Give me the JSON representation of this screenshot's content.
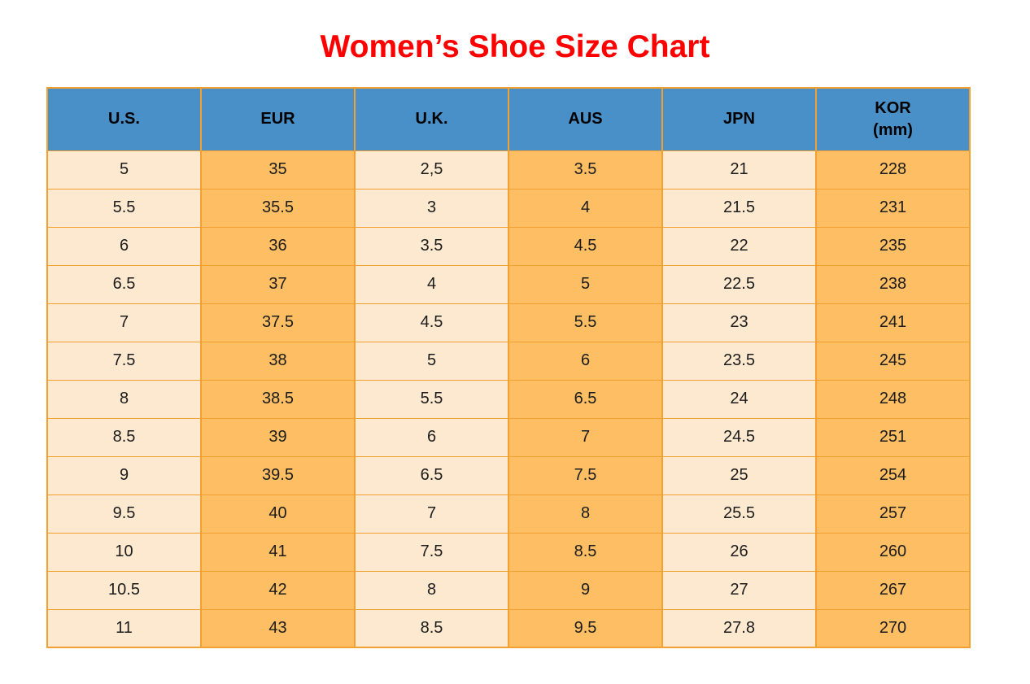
{
  "page": {
    "title": "Women’s Shoe Size Chart"
  },
  "colors": {
    "title": "#FF0000",
    "header_bg": "#4A90C8",
    "header_text": "#000000",
    "column_cream": "#FCE9CF",
    "column_orange": "#FDBE64",
    "border": "#F2A130",
    "cell_text": "#1C1C1C"
  },
  "table": {
    "columns": [
      {
        "label": "U.S.",
        "sub": "",
        "tone": "cream"
      },
      {
        "label": "EUR",
        "sub": "",
        "tone": "orange"
      },
      {
        "label": "U.K.",
        "sub": "",
        "tone": "cream"
      },
      {
        "label": "AUS",
        "sub": "",
        "tone": "orange"
      },
      {
        "label": "JPN",
        "sub": "",
        "tone": "cream"
      },
      {
        "label": "KOR",
        "sub": "(mm)",
        "tone": "orange"
      }
    ],
    "rows": [
      [
        "5",
        "35",
        "2,5",
        "3.5",
        "21",
        "228"
      ],
      [
        "5.5",
        "35.5",
        "3",
        "4",
        "21.5",
        "231"
      ],
      [
        "6",
        "36",
        "3.5",
        "4.5",
        "22",
        "235"
      ],
      [
        "6.5",
        "37",
        "4",
        "5",
        "22.5",
        "238"
      ],
      [
        "7",
        "37.5",
        "4.5",
        "5.5",
        "23",
        "241"
      ],
      [
        "7.5",
        "38",
        "5",
        "6",
        "23.5",
        "245"
      ],
      [
        "8",
        "38.5",
        "5.5",
        "6.5",
        "24",
        "248"
      ],
      [
        "8.5",
        "39",
        "6",
        "7",
        "24.5",
        "251"
      ],
      [
        "9",
        "39.5",
        "6.5",
        "7.5",
        "25",
        "254"
      ],
      [
        "9.5",
        "40",
        "7",
        "8",
        "25.5",
        "257"
      ],
      [
        "10",
        "41",
        "7.5",
        "8.5",
        "26",
        "260"
      ],
      [
        "10.5",
        "42",
        "8",
        "9",
        "27",
        "267"
      ],
      [
        "11",
        "43",
        "8.5",
        "9.5",
        "27.8",
        "270"
      ]
    ]
  },
  "chart_data": {
    "type": "table",
    "title": "Women’s Shoe Size Chart",
    "columns": [
      "U.S.",
      "EUR",
      "U.K.",
      "AUS",
      "JPN",
      "KOR (mm)"
    ],
    "rows": [
      [
        "5",
        "35",
        "2,5",
        "3.5",
        "21",
        "228"
      ],
      [
        "5.5",
        "35.5",
        "3",
        "4",
        "21.5",
        "231"
      ],
      [
        "6",
        "36",
        "3.5",
        "4.5",
        "22",
        "235"
      ],
      [
        "6.5",
        "37",
        "4",
        "5",
        "22.5",
        "238"
      ],
      [
        "7",
        "37.5",
        "4.5",
        "5.5",
        "23",
        "241"
      ],
      [
        "7.5",
        "38",
        "5",
        "6",
        "23.5",
        "245"
      ],
      [
        "8",
        "38.5",
        "5.5",
        "6.5",
        "24",
        "248"
      ],
      [
        "8.5",
        "39",
        "6",
        "7",
        "24.5",
        "251"
      ],
      [
        "9",
        "39.5",
        "6.5",
        "7.5",
        "25",
        "254"
      ],
      [
        "9.5",
        "40",
        "7",
        "8",
        "25.5",
        "257"
      ],
      [
        "10",
        "41",
        "7.5",
        "8.5",
        "26",
        "260"
      ],
      [
        "10.5",
        "42",
        "8",
        "9",
        "27",
        "267"
      ],
      [
        "11",
        "43",
        "8.5",
        "9.5",
        "27.8",
        "270"
      ]
    ]
  }
}
